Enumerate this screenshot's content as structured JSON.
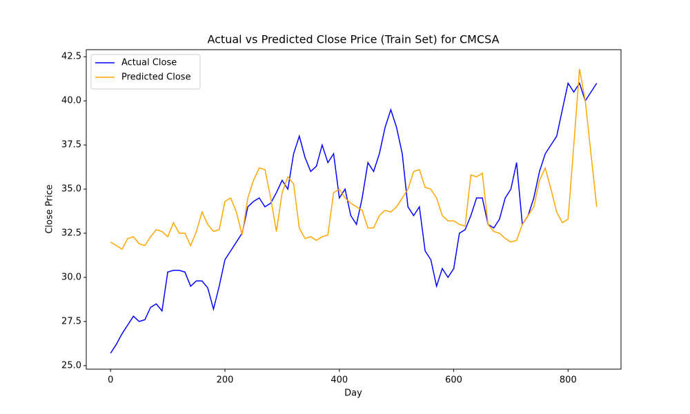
{
  "chart_data": {
    "type": "line",
    "title": "Actual vs Predicted Close Price (Train Set) for CMCSA",
    "x_label": "Day",
    "y_label": "Close Price",
    "x": [
      0,
      10,
      20,
      30,
      40,
      50,
      60,
      70,
      80,
      90,
      100,
      110,
      120,
      130,
      140,
      150,
      160,
      170,
      180,
      190,
      200,
      210,
      220,
      230,
      240,
      250,
      260,
      270,
      280,
      290,
      300,
      310,
      320,
      330,
      340,
      350,
      360,
      370,
      380,
      390,
      400,
      410,
      420,
      430,
      440,
      450,
      460,
      470,
      480,
      490,
      500,
      510,
      520,
      530,
      540,
      550,
      560,
      570,
      580,
      590,
      600,
      610,
      620,
      630,
      640,
      650,
      660,
      670,
      680,
      690,
      700,
      710,
      720,
      730,
      740,
      750,
      760,
      770,
      780,
      790,
      800,
      810,
      820,
      830,
      840,
      850
    ],
    "series": [
      {
        "name": "Actual Close",
        "color": "#0000ff",
        "values": [
          25.7,
          26.2,
          26.8,
          27.3,
          27.8,
          27.5,
          27.6,
          28.3,
          28.5,
          28.1,
          30.3,
          30.4,
          30.4,
          30.3,
          29.5,
          29.8,
          29.8,
          29.4,
          28.2,
          29.5,
          31.0,
          31.5,
          32.0,
          32.5,
          34.0,
          34.3,
          34.5,
          34.0,
          34.2,
          34.8,
          35.5,
          35.0,
          37.0,
          38.0,
          36.8,
          36.0,
          36.3,
          37.5,
          36.5,
          37.0,
          34.5,
          35.0,
          33.5,
          33.0,
          34.5,
          36.5,
          36.0,
          37.0,
          38.5,
          39.5,
          38.5,
          37.0,
          34.0,
          33.5,
          34.0,
          31.5,
          31.0,
          29.5,
          30.5,
          30.0,
          30.5,
          32.5,
          32.7,
          33.5,
          34.5,
          34.5,
          33.0,
          32.8,
          33.3,
          34.5,
          35.0,
          36.5,
          33.0,
          33.5,
          34.5,
          36.0,
          37.0,
          37.5,
          38.0,
          39.5,
          41.0,
          40.5,
          41.0,
          40.0,
          40.5,
          41.0
        ]
      },
      {
        "name": "Predicted Close",
        "color": "#ffa500",
        "values": [
          32.0,
          31.8,
          31.6,
          32.2,
          32.3,
          31.9,
          31.8,
          32.3,
          32.7,
          32.6,
          32.3,
          33.1,
          32.5,
          32.5,
          31.8,
          32.6,
          33.7,
          33.0,
          32.6,
          32.7,
          34.3,
          34.5,
          33.7,
          32.4,
          34.5,
          35.5,
          36.2,
          36.1,
          34.5,
          32.6,
          34.8,
          35.7,
          35.3,
          32.8,
          32.2,
          32.3,
          32.1,
          32.3,
          32.4,
          34.8,
          35.0,
          34.5,
          34.2,
          34.0,
          33.8,
          32.8,
          32.8,
          33.5,
          33.8,
          33.7,
          34.0,
          34.5,
          35.0,
          36.0,
          36.1,
          35.1,
          35.0,
          34.5,
          33.5,
          33.2,
          33.2,
          33.0,
          32.9,
          35.8,
          35.7,
          35.9,
          33.0,
          32.6,
          32.5,
          32.2,
          32.0,
          32.1,
          33.0,
          33.5,
          34.0,
          35.5,
          36.2,
          35.0,
          33.7,
          33.1,
          33.3,
          37.5,
          41.8,
          40.0,
          37.0,
          34.0
        ]
      }
    ],
    "xlim": [
      -42.5,
      892.5
    ],
    "ylim": [
      24.8,
      42.9
    ],
    "xticks": [
      0,
      200,
      400,
      600,
      800
    ],
    "yticks": [
      {
        "value": 25,
        "label": "25.0"
      },
      {
        "value": 27.5,
        "label": "27.5"
      },
      {
        "value": 30,
        "label": "30.0"
      },
      {
        "value": 32.5,
        "label": "32.5"
      },
      {
        "value": 35,
        "label": "35.0"
      },
      {
        "value": 37.5,
        "label": "37.5"
      },
      {
        "value": 40,
        "label": "40.0"
      },
      {
        "value": 42.5,
        "label": "42.5"
      }
    ],
    "legend": "upper left"
  }
}
